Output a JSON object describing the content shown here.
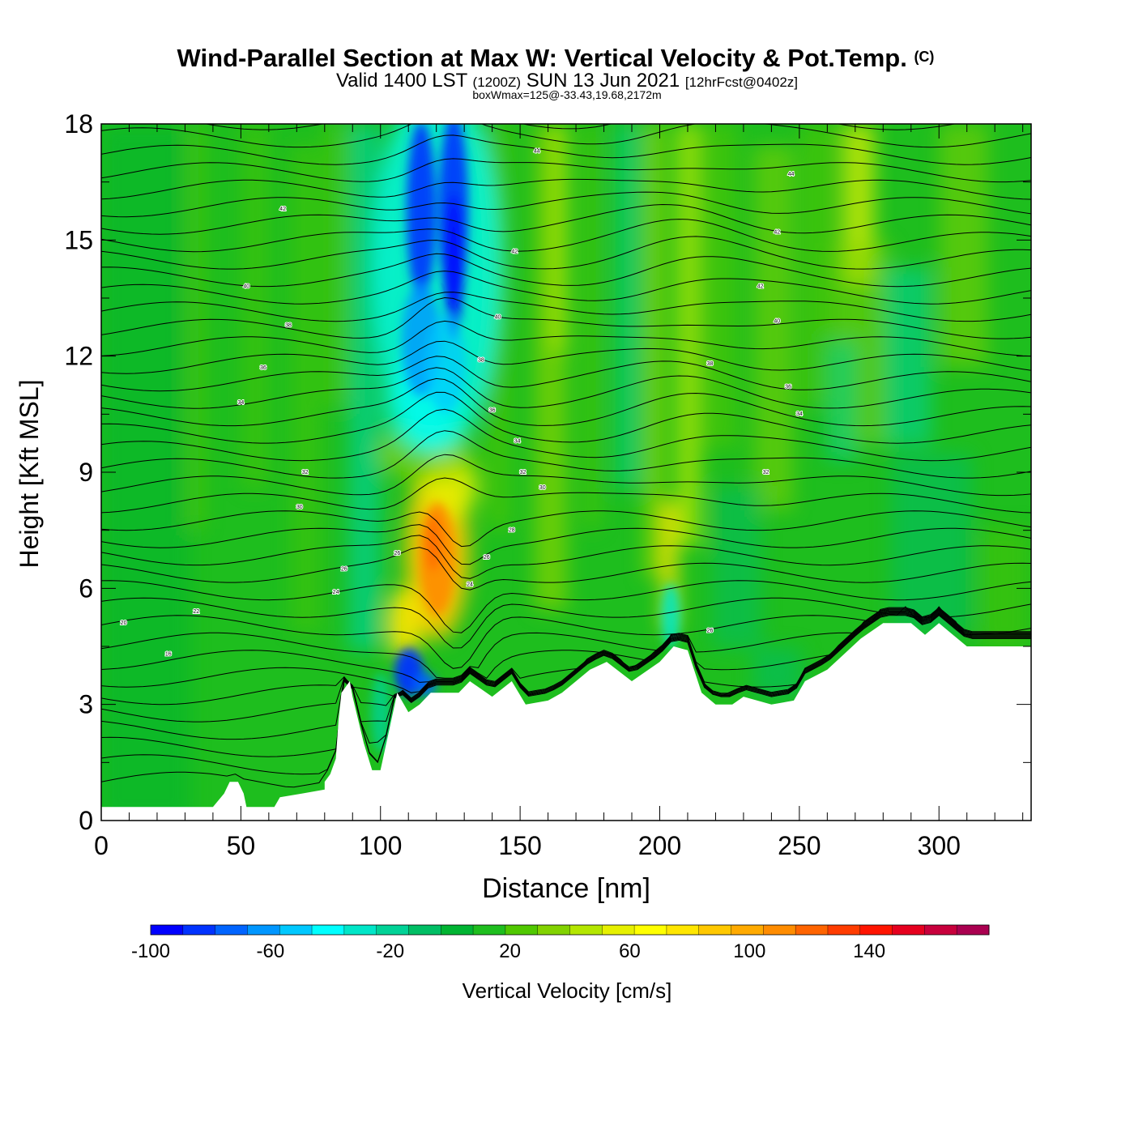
{
  "header": {
    "title": "Wind-Parallel Section at Max W: Vertical Velocity & Pot.Temp.",
    "copyright": "(C)",
    "valid_main": "Valid 1400 LST",
    "valid_utc": "(1200Z)",
    "valid_date": "SUN 13 Jun 2021",
    "forecast": "[12hrFcst@0402z]",
    "boxwmax": "boxWmax=125@-33.43,19.68,2172m"
  },
  "chart_data": {
    "type": "heatmap",
    "xlabel": "Distance [nm]",
    "ylabel": "Height [Kft MSL]",
    "xlim": [
      0,
      333
    ],
    "ylim": [
      0,
      18
    ],
    "x_ticks": [
      "0",
      "50",
      "100",
      "150",
      "200",
      "250",
      "300"
    ],
    "y_ticks": [
      "0",
      "3",
      "6",
      "9",
      "12",
      "15",
      "18"
    ],
    "grid": false,
    "colorbar": {
      "label": "Vertical Velocity [cm/s]",
      "placement": "bottom",
      "min": -100,
      "max": 170,
      "step": 10,
      "tick_labels": [
        "-100",
        "-60",
        "-20",
        "20",
        "60",
        "100",
        "140"
      ],
      "colors": [
        "#0000ff",
        "#0032ff",
        "#0064ff",
        "#0096ff",
        "#00c8ff",
        "#00ffff",
        "#00e6c8",
        "#00d296",
        "#00be64",
        "#00b432",
        "#1ebe1e",
        "#50c800",
        "#82d200",
        "#b4e600",
        "#e6f000",
        "#ffff00",
        "#ffe600",
        "#ffc800",
        "#ffaa00",
        "#ff8c00",
        "#ff6400",
        "#ff3c00",
        "#ff1400",
        "#e6001e",
        "#c8003c",
        "#aa0050"
      ]
    },
    "terrain_kft": [
      [
        0,
        0.35
      ],
      [
        18,
        0.35
      ],
      [
        40,
        0.35
      ],
      [
        44,
        0.7
      ],
      [
        46,
        1.0
      ],
      [
        49,
        1.0
      ],
      [
        51,
        0.7
      ],
      [
        52,
        0.35
      ],
      [
        62,
        0.35
      ],
      [
        64,
        0.6
      ],
      [
        72,
        0.7
      ],
      [
        80,
        0.8
      ],
      [
        80,
        1.0
      ],
      [
        82,
        1.2
      ],
      [
        84,
        1.6
      ],
      [
        85,
        2.6
      ],
      [
        86,
        3.3
      ],
      [
        89,
        3.6
      ],
      [
        90,
        3.2
      ],
      [
        94,
        2.0
      ],
      [
        97,
        1.3
      ],
      [
        100,
        1.3
      ],
      [
        103,
        2.3
      ],
      [
        106,
        3.3
      ],
      [
        110,
        2.8
      ],
      [
        114,
        3.0
      ],
      [
        118,
        3.3
      ],
      [
        128,
        3.3
      ],
      [
        132,
        3.6
      ],
      [
        140,
        3.2
      ],
      [
        147,
        3.6
      ],
      [
        152,
        3.0
      ],
      [
        160,
        3.1
      ],
      [
        165,
        3.3
      ],
      [
        170,
        3.6
      ],
      [
        175,
        3.9
      ],
      [
        181,
        4.1
      ],
      [
        190,
        3.6
      ],
      [
        200,
        4.1
      ],
      [
        205,
        4.5
      ],
      [
        210,
        4.4
      ],
      [
        215,
        3.3
      ],
      [
        220,
        3.0
      ],
      [
        226,
        3.0
      ],
      [
        230,
        3.2
      ],
      [
        240,
        3.0
      ],
      [
        248,
        3.1
      ],
      [
        252,
        3.6
      ],
      [
        260,
        3.9
      ],
      [
        266,
        4.3
      ],
      [
        272,
        4.7
      ],
      [
        280,
        5.1
      ],
      [
        290,
        5.1
      ],
      [
        295,
        4.8
      ],
      [
        300,
        5.1
      ],
      [
        305,
        4.8
      ],
      [
        310,
        4.5
      ],
      [
        333,
        4.5
      ]
    ],
    "theta_contour_labels": [
      {
        "x": 8,
        "y": 5.1,
        "text": "20"
      },
      {
        "x": 24,
        "y": 4.3,
        "text": "16"
      },
      {
        "x": 34,
        "y": 5.4,
        "text": "22"
      },
      {
        "x": 84,
        "y": 5.9,
        "text": "24"
      },
      {
        "x": 87,
        "y": 6.5,
        "text": "26"
      },
      {
        "x": 71,
        "y": 8.1,
        "text": "30"
      },
      {
        "x": 73,
        "y": 9.0,
        "text": "32"
      },
      {
        "x": 50,
        "y": 10.8,
        "text": "34"
      },
      {
        "x": 58,
        "y": 11.7,
        "text": "36"
      },
      {
        "x": 67,
        "y": 12.8,
        "text": "38"
      },
      {
        "x": 52,
        "y": 13.8,
        "text": "40"
      },
      {
        "x": 65,
        "y": 15.8,
        "text": "42"
      },
      {
        "x": 106,
        "y": 6.9,
        "text": "26"
      },
      {
        "x": 132,
        "y": 6.1,
        "text": "24"
      },
      {
        "x": 138,
        "y": 6.8,
        "text": "26"
      },
      {
        "x": 147,
        "y": 7.5,
        "text": "28"
      },
      {
        "x": 158,
        "y": 8.6,
        "text": "30"
      },
      {
        "x": 151,
        "y": 9.0,
        "text": "32"
      },
      {
        "x": 149,
        "y": 9.8,
        "text": "34"
      },
      {
        "x": 140,
        "y": 10.6,
        "text": "36"
      },
      {
        "x": 136,
        "y": 11.9,
        "text": "38"
      },
      {
        "x": 142,
        "y": 13.0,
        "text": "40"
      },
      {
        "x": 148,
        "y": 14.7,
        "text": "42"
      },
      {
        "x": 156,
        "y": 17.3,
        "text": "44"
      },
      {
        "x": 218,
        "y": 4.9,
        "text": "26"
      },
      {
        "x": 238,
        "y": 9.0,
        "text": "32"
      },
      {
        "x": 250,
        "y": 10.5,
        "text": "34"
      },
      {
        "x": 246,
        "y": 11.2,
        "text": "36"
      },
      {
        "x": 218,
        "y": 11.8,
        "text": "38"
      },
      {
        "x": 242,
        "y": 12.9,
        "text": "40"
      },
      {
        "x": 236,
        "y": 13.8,
        "text": "42"
      },
      {
        "x": 242,
        "y": 15.2,
        "text": "42"
      },
      {
        "x": 247,
        "y": 16.7,
        "text": "44"
      }
    ]
  }
}
